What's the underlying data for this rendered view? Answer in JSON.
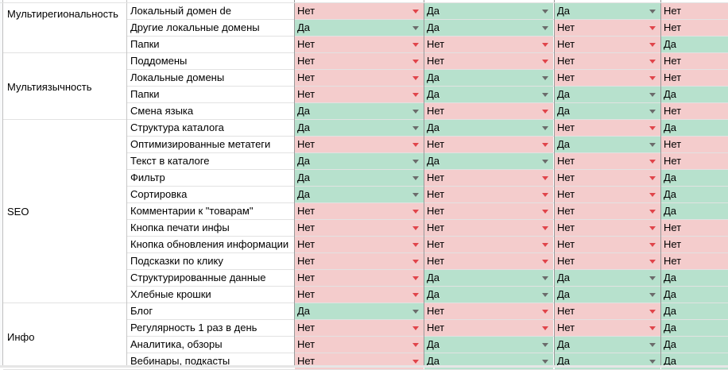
{
  "yes_label": "Да",
  "no_label": "Нет",
  "colors": {
    "yes_fill": "#b7e1cd",
    "no_fill": "#f4cccc",
    "yes_arrow": "#6b6b6b",
    "no_arrow": "#e0444a"
  },
  "icon": "dropdown-arrow-icon",
  "groups": [
    {
      "name": "Мультирегиональность",
      "align": "top",
      "rows": [
        {
          "label": "Локальный домен de",
          "values": [
            "Нет",
            "Да",
            "Да",
            "Нет"
          ]
        },
        {
          "label": "Другие локальные домены",
          "values": [
            "Да",
            "Да",
            "Нет",
            "Нет"
          ]
        },
        {
          "label": "Папки",
          "values": [
            "Нет",
            "Нет",
            "Нет",
            "Да"
          ]
        }
      ]
    },
    {
      "name": "Мультиязычность",
      "align": "middle",
      "rows": [
        {
          "label": "Поддомены",
          "values": [
            "Нет",
            "Нет",
            "Нет",
            "Нет"
          ]
        },
        {
          "label": "Локальные домены",
          "values": [
            "Нет",
            "Да",
            "Нет",
            "Нет"
          ]
        },
        {
          "label": "Папки",
          "values": [
            "Нет",
            "Да",
            "Да",
            "Да"
          ]
        },
        {
          "label": "Смена языка",
          "values": [
            "Да",
            "Нет",
            "Да",
            "Нет"
          ]
        }
      ]
    },
    {
      "name": "SEO",
      "align": "middle",
      "rows": [
        {
          "label": "Структура каталога",
          "values": [
            "Да",
            "Да",
            "Нет",
            "Да"
          ]
        },
        {
          "label": "Оптимизированные метатеги",
          "values": [
            "Нет",
            "Нет",
            "Да",
            "Нет"
          ]
        },
        {
          "label": "Текст в каталоге",
          "values": [
            "Да",
            "Да",
            "Нет",
            "Нет"
          ]
        },
        {
          "label": "Фильтр",
          "values": [
            "Да",
            "Нет",
            "Нет",
            "Да"
          ]
        },
        {
          "label": "Сортировка",
          "values": [
            "Да",
            "Нет",
            "Нет",
            "Да"
          ]
        },
        {
          "label": "Комментарии к \"товарам\"",
          "values": [
            "Нет",
            "Нет",
            "Нет",
            "Да"
          ]
        },
        {
          "label": "Кнопка печати инфы",
          "values": [
            "Нет",
            "Нет",
            "Нет",
            "Нет"
          ]
        },
        {
          "label": "Кнопка обновления информации",
          "values": [
            "Нет",
            "Нет",
            "Нет",
            "Нет"
          ]
        },
        {
          "label": "Подсказки по клику",
          "values": [
            "Нет",
            "Нет",
            "Нет",
            "Нет"
          ]
        },
        {
          "label": "Структурированные данные",
          "values": [
            "Нет",
            "Да",
            "Да",
            "Да"
          ]
        },
        {
          "label": "Хлебные крошки",
          "values": [
            "Нет",
            "Да",
            "Да",
            "Да"
          ]
        }
      ]
    },
    {
      "name": "Инфо",
      "align": "middle",
      "rows": [
        {
          "label": "Блог",
          "values": [
            "Да",
            "Нет",
            "Нет",
            "Да"
          ]
        },
        {
          "label": "Регулярность 1 раз в день",
          "values": [
            "Нет",
            "Нет",
            "Нет",
            "Да"
          ]
        },
        {
          "label": "Аналитика, обзоры",
          "values": [
            "Нет",
            "Да",
            "Да",
            "Да"
          ]
        },
        {
          "label": "Вебинары, подкасты",
          "values": [
            "Нет",
            "Да",
            "Да",
            "Да"
          ]
        }
      ]
    }
  ]
}
